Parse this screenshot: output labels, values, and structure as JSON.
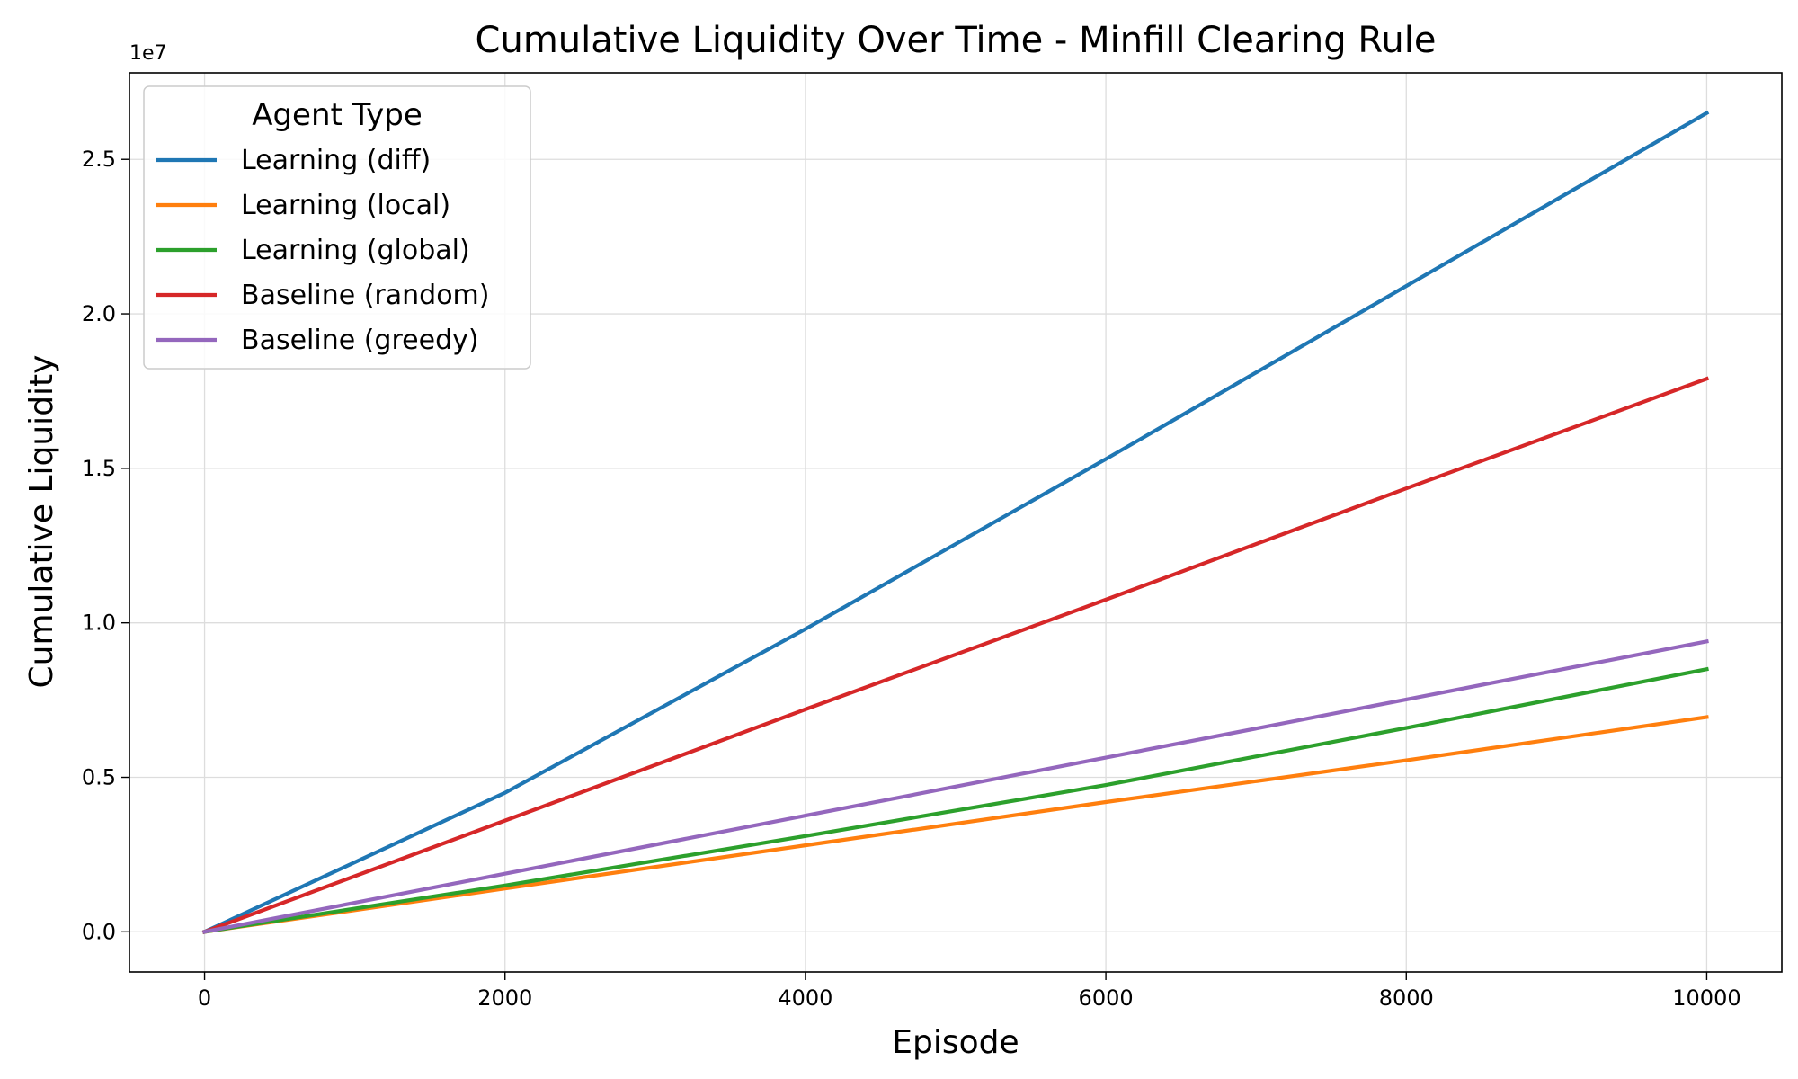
{
  "chart_data": {
    "type": "line",
    "title": "Cumulative Liquidity Over Time - Minfill Clearing Rule",
    "xlabel": "Episode",
    "ylabel": "Cumulative Liquidity",
    "y_offset_label": "1e7",
    "xlim": [
      -500,
      10500
    ],
    "ylim": [
      -0.13,
      2.78
    ],
    "y_scale": 10000000,
    "x_ticks": [
      0,
      2000,
      4000,
      6000,
      8000,
      10000
    ],
    "x_tick_labels": [
      "0",
      "2000",
      "4000",
      "6000",
      "8000",
      "10000"
    ],
    "y_ticks": [
      0.0,
      0.5,
      1.0,
      1.5,
      2.0,
      2.5
    ],
    "y_tick_labels": [
      "0.0",
      "0.5",
      "1.0",
      "1.5",
      "2.0",
      "2.5"
    ],
    "grid": true,
    "legend": {
      "title": "Agent Type",
      "placement": "top-left"
    },
    "x": [
      0,
      2000,
      4000,
      6000,
      8000,
      10000
    ],
    "series": [
      {
        "name": "Learning (diff)",
        "color": "#1f77b4",
        "values": [
          0,
          0.45,
          0.98,
          1.53,
          2.09,
          2.65
        ]
      },
      {
        "name": "Learning (local)",
        "color": "#ff7f0e",
        "values": [
          0,
          0.14,
          0.28,
          0.42,
          0.555,
          0.695
        ]
      },
      {
        "name": "Learning (global)",
        "color": "#2ca02c",
        "values": [
          0,
          0.15,
          0.31,
          0.475,
          0.66,
          0.85
        ]
      },
      {
        "name": "Baseline (random)",
        "color": "#d62728",
        "values": [
          0,
          0.36,
          0.72,
          1.075,
          1.435,
          1.79
        ]
      },
      {
        "name": "Baseline (greedy)",
        "color": "#9467bd",
        "values": [
          0,
          0.188,
          0.376,
          0.564,
          0.752,
          0.94
        ]
      }
    ]
  }
}
